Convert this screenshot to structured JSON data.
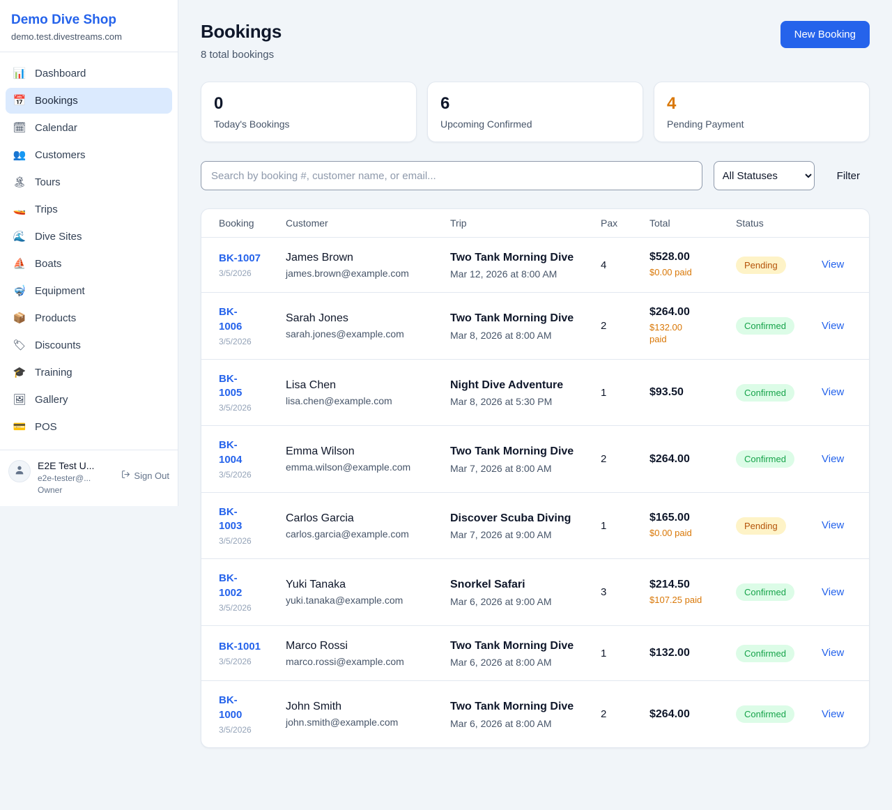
{
  "sidebar": {
    "brand": {
      "name": "Demo Dive Shop",
      "domain": "demo.test.divestreams.com"
    },
    "items": [
      {
        "label": "Dashboard",
        "icon_name": "dashboard-icon",
        "glyph": "📊",
        "active": false
      },
      {
        "label": "Bookings",
        "icon_name": "bookings-icon",
        "glyph": "📅",
        "active": true
      },
      {
        "label": "Calendar",
        "icon_name": "calendar-icon",
        "glyph": "🗓",
        "active": false
      },
      {
        "label": "Customers",
        "icon_name": "customers-icon",
        "glyph": "👥",
        "active": false
      },
      {
        "label": "Tours",
        "icon_name": "tours-icon",
        "glyph": "🏝",
        "active": false
      },
      {
        "label": "Trips",
        "icon_name": "trips-icon",
        "glyph": "🚤",
        "active": false
      },
      {
        "label": "Dive Sites",
        "icon_name": "dive-sites-icon",
        "glyph": "🌊",
        "active": false
      },
      {
        "label": "Boats",
        "icon_name": "boats-icon",
        "glyph": "⛵",
        "active": false
      },
      {
        "label": "Equipment",
        "icon_name": "equipment-icon",
        "glyph": "🤿",
        "active": false
      },
      {
        "label": "Products",
        "icon_name": "products-icon",
        "glyph": "📦",
        "active": false
      },
      {
        "label": "Discounts",
        "icon_name": "discounts-icon",
        "glyph": "🏷",
        "active": false
      },
      {
        "label": "Training",
        "icon_name": "training-icon",
        "glyph": "🎓",
        "active": false
      },
      {
        "label": "Gallery",
        "icon_name": "gallery-icon",
        "glyph": "🖼",
        "active": false
      },
      {
        "label": "POS",
        "icon_name": "pos-icon",
        "glyph": "💳",
        "active": false
      }
    ],
    "user": {
      "name": "E2E Test U...",
      "email": "e2e-tester@...",
      "role": "Owner",
      "sign_out_label": "Sign Out"
    }
  },
  "header": {
    "title": "Bookings",
    "subtitle": "8 total bookings",
    "new_booking_label": "New Booking"
  },
  "stats": [
    {
      "value": "0",
      "label": "Today's Bookings",
      "highlight": false
    },
    {
      "value": "6",
      "label": "Upcoming Confirmed",
      "highlight": false
    },
    {
      "value": "4",
      "label": "Pending Payment",
      "highlight": true
    }
  ],
  "filters": {
    "search_placeholder": "Search by booking #, customer name, or email...",
    "status_selected": "All Statuses",
    "filter_label": "Filter"
  },
  "table": {
    "headers": [
      "Booking",
      "Customer",
      "Trip",
      "Pax",
      "Total",
      "Status"
    ],
    "view_label": "View",
    "rows": [
      {
        "id": "BK-1007",
        "date": "3/5/2026",
        "customer": "James Brown",
        "email": "james.brown@example.com",
        "trip": "Two Tank Morning Dive",
        "datetime": "Mar 12, 2026 at 8:00 AM",
        "pax": "4",
        "total": "$528.00",
        "paid": "$0.00 paid",
        "status": "Pending",
        "id_two_lines": false,
        "paid_two_lines": false
      },
      {
        "id": "BK-1006",
        "date": "3/5/2026",
        "customer": "Sarah Jones",
        "email": "sarah.jones@example.com",
        "trip": "Two Tank Morning Dive",
        "datetime": "Mar 8, 2026 at 8:00 AM",
        "pax": "2",
        "total": "$264.00",
        "paid": "$132.00 paid",
        "status": "Confirmed",
        "id_two_lines": true,
        "paid_two_lines": true
      },
      {
        "id": "BK-1005",
        "date": "3/5/2026",
        "customer": "Lisa Chen",
        "email": "lisa.chen@example.com",
        "trip": "Night Dive Adventure",
        "datetime": "Mar 8, 2026 at 5:30 PM",
        "pax": "1",
        "total": "$93.50",
        "paid": null,
        "status": "Confirmed",
        "id_two_lines": true,
        "paid_two_lines": false
      },
      {
        "id": "BK-1004",
        "date": "3/5/2026",
        "customer": "Emma Wilson",
        "email": "emma.wilson@example.com",
        "trip": "Two Tank Morning Dive",
        "datetime": "Mar 7, 2026 at 8:00 AM",
        "pax": "2",
        "total": "$264.00",
        "paid": null,
        "status": "Confirmed",
        "id_two_lines": true,
        "paid_two_lines": false
      },
      {
        "id": "BK-1003",
        "date": "3/5/2026",
        "customer": "Carlos Garcia",
        "email": "carlos.garcia@example.com",
        "trip": "Discover Scuba Diving",
        "datetime": "Mar 7, 2026 at 9:00 AM",
        "pax": "1",
        "total": "$165.00",
        "paid": "$0.00 paid",
        "status": "Pending",
        "id_two_lines": true,
        "paid_two_lines": false
      },
      {
        "id": "BK-1002",
        "date": "3/5/2026",
        "customer": "Yuki Tanaka",
        "email": "yuki.tanaka@example.com",
        "trip": "Snorkel Safari",
        "datetime": "Mar 6, 2026 at 9:00 AM",
        "pax": "3",
        "total": "$214.50",
        "paid": "$107.25 paid",
        "status": "Confirmed",
        "id_two_lines": true,
        "paid_two_lines": false
      },
      {
        "id": "BK-1001",
        "date": "3/5/2026",
        "customer": "Marco Rossi",
        "email": "marco.rossi@example.com",
        "trip": "Two Tank Morning Dive",
        "datetime": "Mar 6, 2026 at 8:00 AM",
        "pax": "1",
        "total": "$132.00",
        "paid": null,
        "status": "Confirmed",
        "id_two_lines": false,
        "paid_two_lines": false
      },
      {
        "id": "BK-1000",
        "date": "3/5/2026",
        "customer": "John Smith",
        "email": "john.smith@example.com",
        "trip": "Two Tank Morning Dive",
        "datetime": "Mar 6, 2026 at 8:00 AM",
        "pax": "2",
        "total": "$264.00",
        "paid": null,
        "status": "Confirmed",
        "id_two_lines": true,
        "paid_two_lines": false
      }
    ]
  },
  "colors": {
    "accent_blue": "#2563eb",
    "page_background": "#f1f5f9",
    "active_nav_background": "#dbeafe",
    "pending_badge_bg": "#fef3c7",
    "pending_badge_text": "#b45309",
    "confirmed_badge_bg": "#dcfce7",
    "confirmed_badge_text": "#16a34a",
    "pending_amount_orange": "#d97706"
  }
}
